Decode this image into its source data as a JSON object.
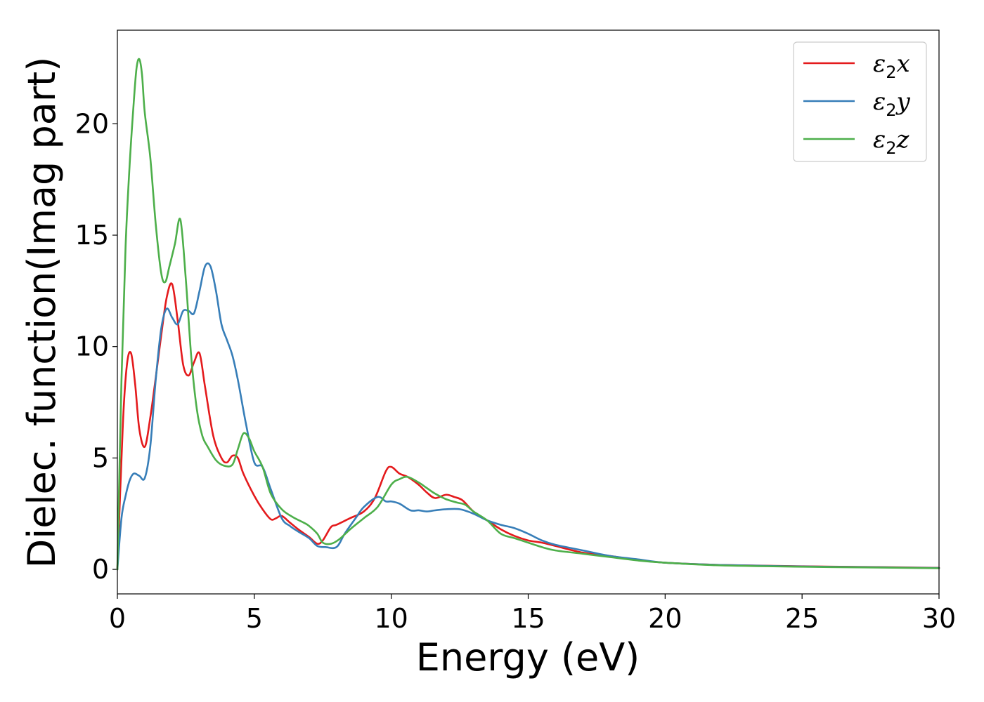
{
  "chart_data": {
    "type": "line",
    "title": "",
    "xlabel": "Energy (eV)",
    "ylabel": "Dielec. function(Imag part)",
    "xlim": [
      0,
      30
    ],
    "ylim": [
      -1.1,
      24.2
    ],
    "xticks": [
      0,
      5,
      10,
      15,
      20,
      25,
      30
    ],
    "yticks": [
      0,
      5,
      10,
      15,
      20
    ],
    "grid": false,
    "legend_position": "top-right",
    "series": [
      {
        "name": "ε₂x",
        "legend": {
          "symbol": "ε",
          "sub": "2",
          "comp": "x"
        },
        "color": "#e41a1c",
        "x": [
          0,
          0.2,
          0.35,
          0.5,
          0.65,
          0.8,
          1.0,
          1.2,
          1.4,
          1.6,
          1.8,
          2.0,
          2.2,
          2.4,
          2.6,
          2.8,
          3.0,
          3.2,
          3.5,
          3.8,
          4.0,
          4.2,
          4.4,
          4.6,
          5.0,
          5.3,
          5.6,
          5.8,
          6.0,
          6.3,
          6.6,
          7.0,
          7.3,
          7.5,
          7.8,
          8.0,
          8.5,
          9.0,
          9.4,
          9.8,
          10.0,
          10.3,
          10.6,
          11.0,
          11.3,
          11.6,
          12.0,
          12.3,
          12.6,
          13.0,
          13.5,
          14.0,
          14.5,
          15.0,
          15.5,
          16.0,
          17.0,
          18.0,
          19.0,
          20.0,
          22.0,
          25.0,
          28.0,
          30.0
        ],
        "y": [
          0,
          6.5,
          9.2,
          9.7,
          8.3,
          6.3,
          5.5,
          6.8,
          8.6,
          10.5,
          12.2,
          12.8,
          11.2,
          9.2,
          8.7,
          9.3,
          9.7,
          8.2,
          6.0,
          5.0,
          4.8,
          5.1,
          5.0,
          4.3,
          3.3,
          2.7,
          2.25,
          2.3,
          2.4,
          2.1,
          1.8,
          1.45,
          1.15,
          1.3,
          1.9,
          2.0,
          2.3,
          2.6,
          3.2,
          4.4,
          4.6,
          4.3,
          4.15,
          3.8,
          3.45,
          3.2,
          3.35,
          3.25,
          3.1,
          2.6,
          2.2,
          1.8,
          1.5,
          1.3,
          1.2,
          1.05,
          0.75,
          0.6,
          0.42,
          0.3,
          0.2,
          0.14,
          0.1,
          0.07
        ]
      },
      {
        "name": "ε₂y",
        "legend": {
          "symbol": "ε",
          "sub": "2",
          "comp": "y"
        },
        "color": "#377eb8",
        "x": [
          0,
          0.15,
          0.3,
          0.45,
          0.6,
          0.8,
          1.0,
          1.2,
          1.4,
          1.6,
          1.8,
          2.0,
          2.2,
          2.4,
          2.6,
          2.8,
          3.0,
          3.2,
          3.4,
          3.6,
          3.8,
          4.0,
          4.2,
          4.4,
          4.7,
          5.0,
          5.3,
          5.6,
          6.0,
          6.3,
          6.6,
          7.0,
          7.3,
          7.6,
          8.0,
          8.3,
          8.7,
          9.0,
          9.5,
          9.8,
          10.0,
          10.3,
          10.7,
          11.0,
          11.3,
          11.6,
          12.0,
          12.5,
          13.0,
          13.5,
          14.0,
          14.5,
          15.0,
          15.5,
          16.0,
          17.0,
          18.0,
          19.0,
          20.0,
          22.0,
          25.0,
          28.0,
          30.0
        ],
        "y": [
          0,
          2.3,
          3.3,
          4.0,
          4.3,
          4.2,
          4.1,
          5.5,
          8.5,
          10.8,
          11.7,
          11.3,
          11.0,
          11.6,
          11.6,
          11.5,
          12.5,
          13.6,
          13.6,
          12.5,
          11.0,
          10.3,
          9.6,
          8.5,
          6.5,
          4.8,
          4.6,
          3.6,
          2.3,
          1.95,
          1.7,
          1.4,
          1.05,
          1.0,
          1.0,
          1.6,
          2.3,
          2.8,
          3.25,
          3.05,
          3.05,
          2.95,
          2.65,
          2.65,
          2.6,
          2.65,
          2.7,
          2.7,
          2.5,
          2.2,
          2.0,
          1.85,
          1.6,
          1.3,
          1.1,
          0.85,
          0.6,
          0.45,
          0.3,
          0.2,
          0.13,
          0.09,
          0.06
        ]
      },
      {
        "name": "ε₂z",
        "legend": {
          "symbol": "ε",
          "sub": "2",
          "comp": "z"
        },
        "color": "#4daf4a",
        "x": [
          0,
          0.15,
          0.3,
          0.45,
          0.6,
          0.7,
          0.8,
          0.9,
          1.0,
          1.2,
          1.4,
          1.6,
          1.75,
          1.9,
          2.1,
          2.3,
          2.5,
          2.7,
          2.9,
          3.1,
          3.3,
          3.6,
          3.9,
          4.2,
          4.4,
          4.6,
          4.8,
          5.0,
          5.3,
          5.6,
          6.0,
          6.4,
          6.8,
          7.0,
          7.3,
          7.5,
          7.8,
          8.1,
          8.5,
          9.0,
          9.5,
          10.0,
          10.3,
          10.6,
          11.0,
          11.3,
          11.6,
          12.0,
          12.4,
          12.7,
          13.0,
          13.5,
          14.0,
          14.5,
          15.0,
          15.5,
          16.0,
          17.0,
          18.0,
          19.0,
          20.0,
          22.0,
          25.0,
          28.0,
          30.0
        ],
        "y": [
          0,
          8.5,
          14.5,
          18.2,
          21.0,
          22.5,
          22.9,
          22.2,
          20.5,
          18.5,
          15.5,
          13.3,
          12.9,
          13.6,
          14.6,
          15.7,
          13.0,
          9.5,
          7.2,
          6.0,
          5.5,
          4.9,
          4.65,
          4.7,
          5.4,
          6.1,
          5.9,
          5.3,
          4.6,
          3.4,
          2.7,
          2.35,
          2.1,
          1.95,
          1.6,
          1.2,
          1.15,
          1.35,
          1.8,
          2.3,
          2.8,
          3.8,
          4.05,
          4.15,
          3.9,
          3.65,
          3.4,
          3.15,
          3.0,
          2.9,
          2.6,
          2.2,
          1.6,
          1.4,
          1.2,
          1.0,
          0.85,
          0.7,
          0.55,
          0.4,
          0.3,
          0.18,
          0.12,
          0.08,
          0.05
        ]
      }
    ]
  }
}
